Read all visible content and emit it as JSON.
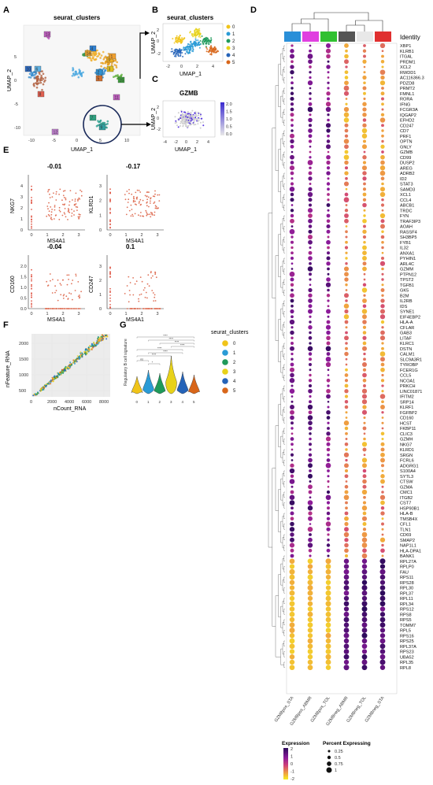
{
  "panel_letters": {
    "A": "A",
    "B": "B",
    "C": "C",
    "D": "D",
    "E": "E",
    "F": "F",
    "G": "G"
  },
  "colors": {
    "c0": "#F0C419",
    "c1": "#2A9BD6",
    "c2": "#1F9A5A",
    "c3": "#E8D21A",
    "c4": "#2563B8",
    "c5": "#D8661A",
    "scatter_pt": "#E0735A",
    "zero_pt": "#E05A4A",
    "umap_grey": "#c8c8c8",
    "gzmb_high": "#3b2ad0"
  },
  "chart_data": [
    {
      "id": "A",
      "type": "scatter",
      "title": "seurat_clusters",
      "xlabel": "UMAP_1",
      "ylabel": "UMAP_2",
      "xticks": [
        "-10",
        "-5",
        "0",
        "5",
        "10"
      ],
      "yticks": [
        "5",
        "0",
        "-5",
        "-10"
      ],
      "cluster_labels": [
        "0",
        "1",
        "2",
        "3",
        "4",
        "5",
        "6",
        "7",
        "8",
        "9",
        "10",
        "11",
        "12",
        "13",
        "14",
        "15"
      ]
    },
    {
      "id": "B",
      "type": "scatter",
      "title": "seurat_clusters",
      "xlabel": "UMAP_1",
      "ylabel": "UMAP_2",
      "xticks": [
        "-2",
        "0",
        "2",
        "4"
      ],
      "yticks": [
        "2",
        "0",
        "-2"
      ],
      "legend": [
        "0",
        "1",
        "2",
        "3",
        "4",
        "5"
      ]
    },
    {
      "id": "C",
      "type": "scatter",
      "title": "GZMB",
      "xlabel": "UMAP_1",
      "ylabel": "UMAP_2",
      "xticks": [
        "-4",
        "-2",
        "0",
        "2",
        "4"
      ],
      "yticks": [
        "2",
        "0",
        "-2"
      ],
      "colorbar_ticks": [
        "2.0",
        "1.5",
        "1.0",
        "0.5",
        "0.0"
      ]
    },
    {
      "id": "E",
      "type": "scatter",
      "xlabel": "MS4A1",
      "subplots": [
        {
          "ylabel": "NKG7",
          "r": "-0.01",
          "xticks": [
            "0",
            "1",
            "2",
            "3"
          ],
          "yticks": [
            "0",
            "1",
            "2",
            "3",
            "4"
          ]
        },
        {
          "ylabel": "KLRD1",
          "r": "-0.17",
          "xticks": [
            "0",
            "1",
            "2",
            "3"
          ],
          "yticks": [
            "0",
            "1",
            "2",
            "3"
          ]
        },
        {
          "ylabel": "CD160",
          "r": "-0.04",
          "xticks": [
            "0",
            "1",
            "2",
            "3"
          ],
          "yticks": [
            "0.0",
            "0.5",
            "1.0",
            "1.5",
            "2.0"
          ]
        },
        {
          "ylabel": "CD247",
          "r": "0.1",
          "xticks": [
            "0",
            "1",
            "2",
            "3"
          ],
          "yticks": [
            "0",
            "1",
            "2",
            "3"
          ]
        }
      ]
    },
    {
      "id": "F",
      "type": "scatter",
      "xlabel": "nCount_RNA",
      "ylabel": "nFeature_RNA",
      "xticks": [
        "0",
        "2000",
        "4000",
        "6000",
        "8000"
      ],
      "yticks": [
        "500",
        "1000",
        "1500",
        "2000"
      ]
    },
    {
      "id": "G",
      "type": "violin",
      "ylabel": "Regulatory B cell signature",
      "categories": [
        "0",
        "1",
        "2",
        "3",
        "4",
        "5"
      ],
      "legend_title": "seurat_clusters",
      "legend": [
        "0",
        "1",
        "2",
        "3",
        "4",
        "5"
      ],
      "significance": [
        "****",
        "****",
        "****",
        "****",
        "****",
        "****",
        "****",
        "ns",
        "*"
      ]
    },
    {
      "id": "D",
      "type": "dotplot",
      "legend_title": "Identity",
      "groups": [
        "GZMBpos_STA",
        "GZMBpos_ABMR",
        "GZMBpos_TOL",
        "GZMBneg_ABMR",
        "GZMBneg_TOL",
        "GZMBneg_STA"
      ],
      "group_colors": [
        "#2a8fd8",
        "#e040e0",
        "#30c030",
        "#555555",
        "#e8e8e8",
        "#e03030"
      ],
      "genes": [
        "XBP1",
        "KLRB1",
        "ITGAL",
        "PRDM1",
        "XCL2",
        "RWDD1",
        "AC116366.3",
        "PDZD8",
        "PRMT2",
        "FMNL1",
        "RORA",
        "IFNG",
        "FCGR3A",
        "IQGAP2",
        "EFHD2",
        "CD247",
        "CD7",
        "PRF1",
        "OPTN",
        "GNLY",
        "GZMB",
        "CD99",
        "DUSP2",
        "AREG",
        "ADRB2",
        "ID2",
        "STAT3",
        "SAMD3",
        "XCL1",
        "CCL4",
        "ABCB1",
        "TRDC",
        "FYN",
        "TRAF3IP3",
        "AOAH",
        "RASSF4",
        "SH3BP5",
        "FYB1",
        "IL32",
        "ANXA1",
        "PYHIN1",
        "ARL4C",
        "GZMM",
        "PTPN12",
        "TPST2",
        "TGFB1",
        "GK5",
        "B2M",
        "IL2RB",
        "IDS",
        "SYNE1",
        "EIF4EBP2",
        "HLA-A",
        "CFLAR",
        "GAB3",
        "LITAF",
        "KLRC1",
        "DSTN",
        "CALM1",
        "SLC9A3R1",
        "TYROBP",
        "FCER1G",
        "CCL5",
        "NCOA1",
        "PRKCH",
        "LINC01871",
        "IFITM2",
        "SRP14",
        "KLRF1",
        "FGFBP2",
        "CD160",
        "HCST",
        "FKBP11",
        "CLIC3",
        "GZMH",
        "NKG7",
        "KLRD1",
        "SRGN",
        "FCRL6",
        "ADGRG1",
        "S100A4",
        "SYTL3",
        "CTSW",
        "GZMA",
        "CMC1",
        "ITGB2",
        "CST7",
        "HSP90B1",
        "HLA-B",
        "TMSB4X",
        "CFL1",
        "TLN1",
        "CD69",
        "SMAP2",
        "NAP1L1",
        "HLA-DPA1",
        "BANK1",
        "RPL27A",
        "RPLP0",
        "FAU",
        "RPS11",
        "RPS28",
        "RPL30",
        "RPL37",
        "RPL11",
        "RPL34",
        "RPS12",
        "RPS8",
        "RPS5",
        "TOMM7",
        "RPL5",
        "RPS16",
        "RPS25",
        "RPL37A",
        "RPS23",
        "UBA52",
        "RPL35",
        "RPL8"
      ],
      "expression_legend_title": "Expression",
      "expression_ticks": [
        "2",
        "1",
        "0",
        "-1",
        "-2"
      ],
      "percent_legend_title": "Percent Expressing",
      "percent_ticks": [
        "0.25",
        "0.5",
        "0.75",
        "1"
      ]
    }
  ]
}
